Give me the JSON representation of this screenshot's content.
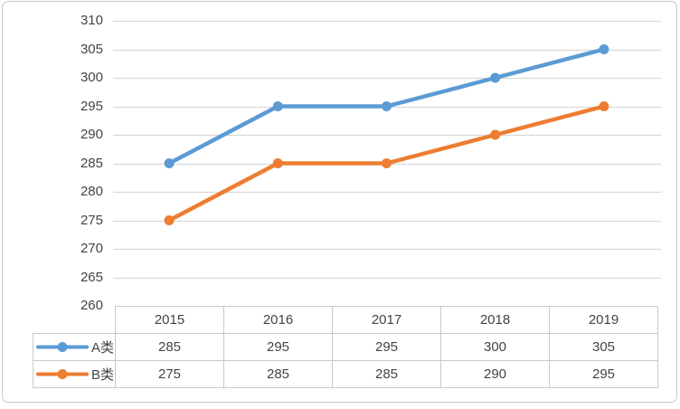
{
  "chart_data": {
    "type": "line",
    "categories": [
      "2015",
      "2016",
      "2017",
      "2018",
      "2019"
    ],
    "series": [
      {
        "name": "A类",
        "values": [
          285,
          295,
          295,
          300,
          305
        ],
        "color": "#5B9BD5"
      },
      {
        "name": "B类",
        "values": [
          275,
          285,
          285,
          290,
          295
        ],
        "color": "#ED7D31"
      }
    ],
    "title": "",
    "xlabel": "",
    "ylabel": "",
    "ylim": [
      260,
      310
    ],
    "yticks": [
      310,
      305,
      300,
      295,
      290,
      285,
      280,
      275,
      270,
      265,
      260
    ],
    "grid": true,
    "gridline_color": "#d9d9d9",
    "legend_position": "data-table-left",
    "marker": "circle"
  },
  "table": {
    "columns": [
      "2015",
      "2016",
      "2017",
      "2018",
      "2019"
    ],
    "rows": [
      {
        "legend": "A类",
        "values": [
          "285",
          "295",
          "295",
          "300",
          "305"
        ]
      },
      {
        "legend": "B类",
        "values": [
          "275",
          "285",
          "285",
          "290",
          "295"
        ]
      }
    ]
  },
  "colors": {
    "series_a": "#5B9BD5",
    "series_b": "#ED7D31",
    "axis_text": "#444444",
    "table_border": "#c9c9c9",
    "widget_border": "#c6c6c6"
  }
}
